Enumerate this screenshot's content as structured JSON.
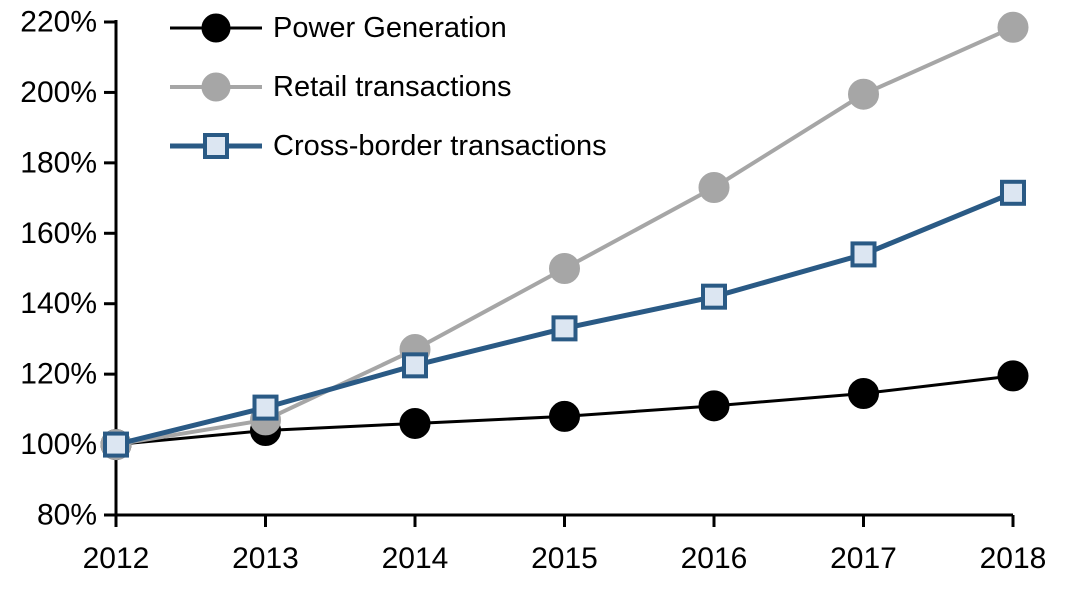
{
  "chart_data": {
    "type": "line",
    "title": "",
    "xlabel": "",
    "ylabel": "",
    "x": [
      2012,
      2013,
      2014,
      2015,
      2016,
      2017,
      2018
    ],
    "xtick_labels": [
      "2012",
      "2013",
      "2014",
      "2015",
      "2016",
      "2017",
      "2018"
    ],
    "ytick_labels_top_down": [
      "220%",
      "200%",
      "180%",
      "160%",
      "140%",
      "120%",
      "100%",
      "80%"
    ],
    "ylim": [
      80,
      220
    ],
    "ytick_step": 20,
    "grid": false,
    "legend_position": "top-left",
    "axis_color": "#000000",
    "series": [
      {
        "name": "Power Generation",
        "values": [
          100,
          104,
          106,
          108,
          111,
          114.5,
          119.5
        ],
        "color": "#000000",
        "marker": "circle",
        "marker_fill": "#000000",
        "line_width": 3
      },
      {
        "name": "Retail transactions",
        "values": [
          100,
          107,
          127,
          150,
          173,
          199.5,
          218.5
        ],
        "color": "#A6A6A6",
        "marker": "circle",
        "marker_fill": "#A6A6A6",
        "line_width": 4
      },
      {
        "name": "Cross-border transactions",
        "values": [
          100,
          110.5,
          122.5,
          133,
          142,
          154,
          171.5
        ],
        "color": "#2A5A85",
        "marker": "square",
        "marker_fill": "#DCE6F2",
        "line_width": 5
      }
    ]
  }
}
